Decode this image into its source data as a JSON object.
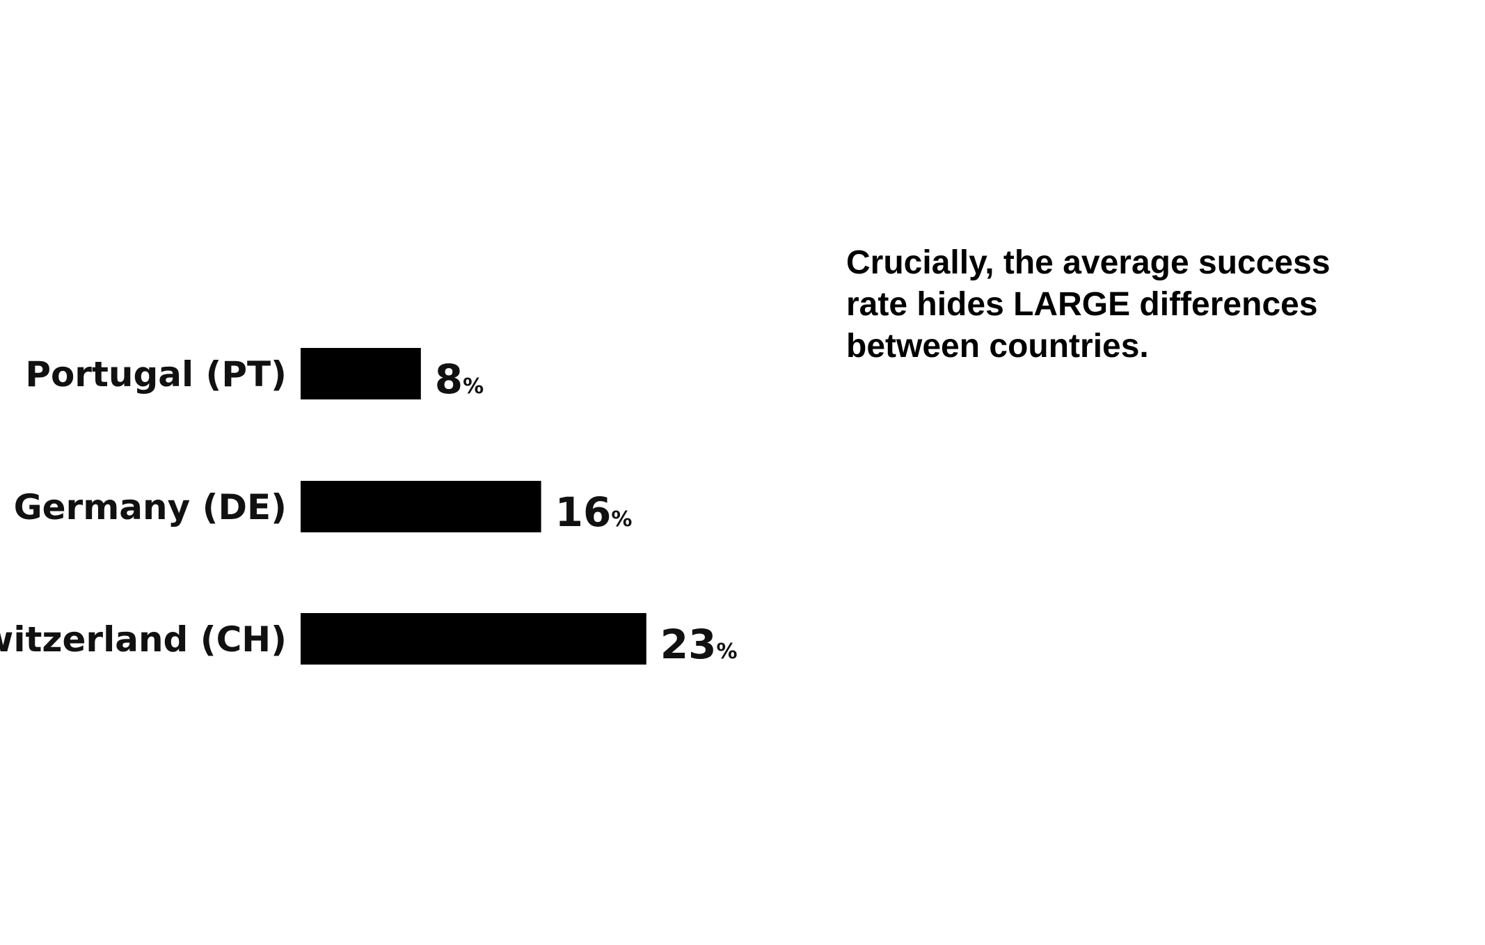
{
  "chart_data": {
    "type": "bar",
    "orientation": "horizontal",
    "categories": [
      "Portugal (PT)",
      "Germany (DE)",
      "Switzerland (CH)"
    ],
    "values": [
      8,
      16,
      23
    ],
    "value_labels": [
      "8",
      "16",
      "23"
    ],
    "unit": "%",
    "xlabel": "",
    "ylabel": "",
    "xlim": [
      0,
      23
    ],
    "grid": false,
    "legend": "none",
    "bar_color": "#000000"
  },
  "annotation": {
    "lines": [
      "Crucially, the average success",
      "rate hides LARGE differences",
      "between countries."
    ]
  }
}
